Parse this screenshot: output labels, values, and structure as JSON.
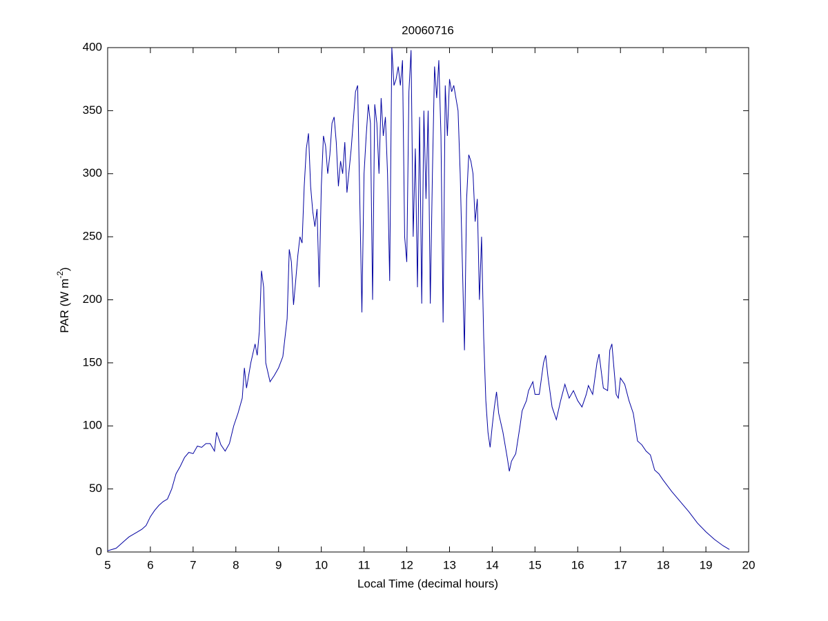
{
  "chart_data": {
    "type": "line",
    "title": "20060716",
    "xlabel": "Local Time (decimal hours)",
    "ylabel_parts": [
      "PAR (W m",
      "-2",
      ")"
    ],
    "xlim": [
      5,
      20
    ],
    "xticks": [
      5,
      6,
      7,
      8,
      9,
      10,
      11,
      12,
      13,
      14,
      15,
      16,
      17,
      18,
      19,
      20
    ],
    "ylim": [
      0,
      400
    ],
    "yticks": [
      0,
      50,
      100,
      150,
      200,
      250,
      300,
      350,
      400
    ],
    "grid": false,
    "series": [
      {
        "color": "#0000a0",
        "x": [
          5.0,
          5.1,
          5.2,
          5.3,
          5.4,
          5.5,
          5.6,
          5.7,
          5.8,
          5.9,
          6.0,
          6.1,
          6.2,
          6.3,
          6.4,
          6.5,
          6.6,
          6.7,
          6.8,
          6.9,
          7.0,
          7.1,
          7.2,
          7.3,
          7.4,
          7.5,
          7.55,
          7.65,
          7.75,
          7.85,
          7.95,
          8.05,
          8.15,
          8.2,
          8.25,
          8.35,
          8.45,
          8.5,
          8.55,
          8.6,
          8.65,
          8.7,
          8.8,
          8.9,
          9.0,
          9.1,
          9.2,
          9.25,
          9.3,
          9.35,
          9.4,
          9.45,
          9.5,
          9.55,
          9.6,
          9.65,
          9.7,
          9.75,
          9.8,
          9.85,
          9.9,
          9.95,
          10.0,
          10.05,
          10.1,
          10.15,
          10.2,
          10.25,
          10.3,
          10.35,
          10.4,
          10.45,
          10.5,
          10.55,
          10.6,
          10.7,
          10.8,
          10.85,
          10.9,
          10.95,
          11.0,
          11.05,
          11.1,
          11.15,
          11.2,
          11.25,
          11.3,
          11.35,
          11.4,
          11.45,
          11.5,
          11.55,
          11.6,
          11.65,
          11.7,
          11.75,
          11.8,
          11.85,
          11.9,
          11.95,
          12.0,
          12.05,
          12.1,
          12.15,
          12.2,
          12.25,
          12.3,
          12.35,
          12.4,
          12.45,
          12.5,
          12.55,
          12.6,
          12.65,
          12.7,
          12.75,
          12.8,
          12.85,
          12.9,
          12.95,
          13.0,
          13.05,
          13.1,
          13.15,
          13.2,
          13.25,
          13.3,
          13.35,
          13.4,
          13.45,
          13.5,
          13.55,
          13.6,
          13.65,
          13.7,
          13.75,
          13.8,
          13.85,
          13.9,
          13.95,
          14.0,
          14.05,
          14.1,
          14.15,
          14.25,
          14.35,
          14.4,
          14.45,
          14.55,
          14.65,
          14.7,
          14.8,
          14.85,
          14.95,
          15.0,
          15.1,
          15.2,
          15.25,
          15.3,
          15.4,
          15.5,
          15.6,
          15.7,
          15.8,
          15.9,
          16.0,
          16.1,
          16.2,
          16.25,
          16.35,
          16.45,
          16.5,
          16.6,
          16.7,
          16.75,
          16.8,
          16.9,
          16.95,
          17.0,
          17.1,
          17.2,
          17.3,
          17.4,
          17.5,
          17.6,
          17.7,
          17.8,
          17.9,
          18.0,
          18.2,
          18.4,
          18.6,
          18.8,
          19.0,
          19.2,
          19.4,
          19.55
        ],
        "values": [
          1,
          2,
          3,
          6,
          9,
          12,
          14,
          16,
          18,
          21,
          28,
          33,
          37,
          40,
          42,
          50,
          62,
          68,
          75,
          79,
          78,
          84,
          83,
          86,
          86,
          80,
          95,
          85,
          80,
          86,
          100,
          110,
          122,
          146,
          130,
          150,
          165,
          156,
          175,
          223,
          210,
          150,
          135,
          140,
          146,
          155,
          185,
          240,
          230,
          196,
          215,
          235,
          250,
          245,
          290,
          320,
          332,
          290,
          270,
          258,
          272,
          210,
          290,
          330,
          322,
          300,
          315,
          340,
          345,
          325,
          290,
          310,
          300,
          325,
          285,
          320,
          365,
          370,
          280,
          190,
          300,
          330,
          355,
          340,
          200,
          355,
          340,
          300,
          360,
          330,
          345,
          300,
          215,
          400,
          370,
          375,
          385,
          370,
          390,
          250,
          230,
          365,
          398,
          250,
          320,
          210,
          345,
          197,
          350,
          280,
          350,
          197,
          300,
          385,
          360,
          390,
          330,
          182,
          370,
          330,
          375,
          365,
          370,
          360,
          350,
          300,
          230,
          160,
          280,
          315,
          310,
          300,
          262,
          280,
          200,
          250,
          170,
          120,
          95,
          83,
          100,
          115,
          127,
          110,
          95,
          75,
          64,
          72,
          78,
          100,
          112,
          120,
          128,
          135,
          125,
          125,
          150,
          156,
          140,
          115,
          105,
          120,
          133,
          122,
          128,
          120,
          115,
          125,
          132,
          125,
          150,
          157,
          130,
          128,
          160,
          165,
          125,
          122,
          138,
          133,
          120,
          110,
          88,
          85,
          80,
          77,
          65,
          62,
          57,
          48,
          40,
          32,
          23,
          16,
          10,
          5,
          2
        ]
      }
    ]
  }
}
